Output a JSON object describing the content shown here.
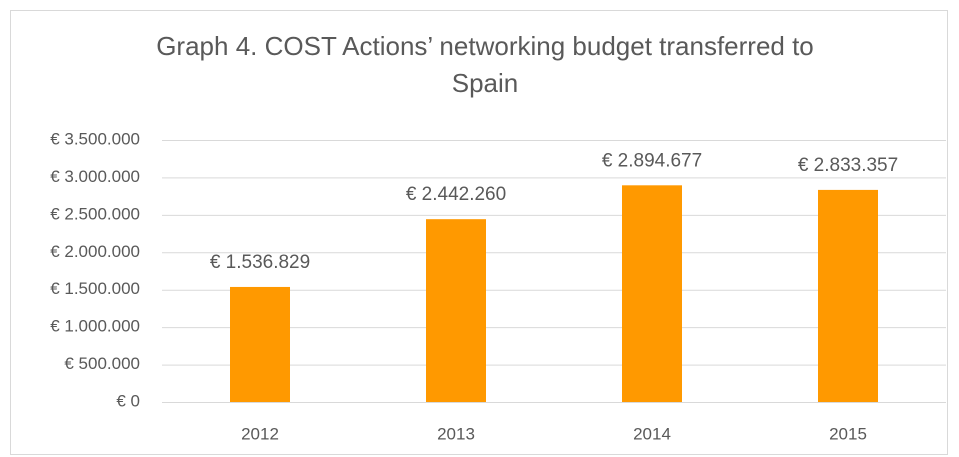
{
  "chart_data": {
    "type": "bar",
    "title": "Graph 4. COST Actions’ networking budget transferred to Spain",
    "categories": [
      "2012",
      "2013",
      "2014",
      "2015"
    ],
    "values": [
      1536829,
      2442260,
      2894677,
      2833357
    ],
    "value_labels": [
      "€ 1.536.829",
      "€ 2.442.260",
      "€ 2.894.677",
      "€ 2.833.357"
    ],
    "color": "#ff9900",
    "ylim": [
      0,
      3500000
    ],
    "yticks": [
      {
        "value": 0,
        "label": "€ 0"
      },
      {
        "value": 500000,
        "label": "€ 500.000"
      },
      {
        "value": 1000000,
        "label": "€ 1.000.000"
      },
      {
        "value": 1500000,
        "label": "€ 1.500.000"
      },
      {
        "value": 2000000,
        "label": "€ 2.000.000"
      },
      {
        "value": 2500000,
        "label": "€ 2.500.000"
      },
      {
        "value": 3000000,
        "label": "€ 3.000.000"
      },
      {
        "value": 3500000,
        "label": "€ 3.500.000"
      }
    ],
    "grid": true
  }
}
